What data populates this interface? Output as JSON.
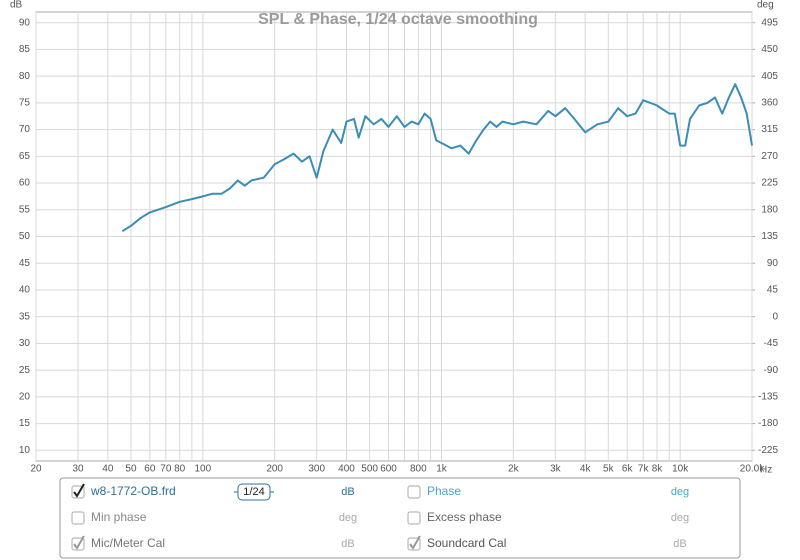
{
  "chart_data": {
    "type": "line",
    "title": "SPL & Phase, 1/24 octave smoothing",
    "y_label": "dB",
    "y2_label": "deg",
    "x_label": "Hz",
    "x_scale": "log",
    "grid": true,
    "xlim": [
      20,
      20000
    ],
    "xticks": [
      20,
      30,
      40,
      50,
      60,
      70,
      80,
      100,
      200,
      300,
      400,
      500,
      600,
      800,
      {
        "value": 1000,
        "label": "1k"
      },
      {
        "value": 2000,
        "label": "2k"
      },
      {
        "value": 3000,
        "label": "3k"
      },
      {
        "value": 4000,
        "label": "4k"
      },
      {
        "value": 5000,
        "label": "5k"
      },
      {
        "value": 6000,
        "label": "6k"
      },
      {
        "value": 7000,
        "label": "7k"
      },
      {
        "value": 8000,
        "label": "8k"
      },
      {
        "value": 10000,
        "label": "10k"
      },
      {
        "value": 20000,
        "label": "20.0k"
      }
    ],
    "xgrid_minor": [
      90,
      700,
      900,
      9000
    ],
    "ylim": [
      8,
      92
    ],
    "yticks": [
      10,
      15,
      20,
      25,
      30,
      35,
      40,
      45,
      50,
      55,
      60,
      65,
      70,
      75,
      80,
      85,
      90
    ],
    "y2lim": [
      -243,
      513
    ],
    "y2ticks": [
      -225,
      -180,
      -135,
      -90,
      -45,
      0,
      45,
      90,
      135,
      180,
      225,
      270,
      315,
      360,
      405,
      450,
      495
    ],
    "x": [
      46,
      50,
      55,
      60,
      70,
      80,
      90,
      100,
      110,
      120,
      130,
      140,
      150,
      160,
      180,
      200,
      220,
      240,
      260,
      280,
      300,
      320,
      350,
      380,
      400,
      430,
      450,
      480,
      520,
      560,
      600,
      650,
      700,
      750,
      800,
      850,
      900,
      950,
      1000,
      1100,
      1200,
      1300,
      1400,
      1500,
      1600,
      1700,
      1800,
      2000,
      2200,
      2500,
      2800,
      3000,
      3300,
      3600,
      4000,
      4500,
      5000,
      5500,
      6000,
      6500,
      7000,
      8000,
      9000,
      9500,
      10000,
      10500,
      11000,
      12000,
      13000,
      14000,
      15000,
      16000,
      17000,
      18000,
      19000,
      20000
    ],
    "series": [
      {
        "name": "w8-1772-OB.frd",
        "color": "#3a8db5",
        "values": [
          51,
          52,
          53.5,
          54.5,
          55.5,
          56.5,
          57,
          57.5,
          58,
          58,
          59,
          60.5,
          59.5,
          60.5,
          61,
          63.5,
          64.5,
          65.5,
          64,
          65,
          61,
          66,
          70,
          67.5,
          71.5,
          72,
          68.5,
          72.5,
          71,
          72,
          70.5,
          72.5,
          70.5,
          71.5,
          71,
          73,
          72,
          68,
          67.5,
          66.5,
          67,
          65.5,
          68,
          70,
          71.5,
          70.5,
          71.5,
          71,
          71.5,
          71,
          73.5,
          72.5,
          74,
          72,
          69.5,
          71,
          71.5,
          74,
          72.5,
          73,
          75.5,
          74.5,
          73,
          73,
          67,
          67,
          72,
          74.5,
          75,
          76,
          73,
          76,
          78.5,
          76,
          73,
          67
        ]
      }
    ]
  },
  "panel": {
    "smoothing": "1/24",
    "rows": [
      [
        {
          "label": "w8-1772-OB.frd",
          "unit": "dB",
          "checked": true,
          "label_color": "#2c6f99",
          "unit_color": "#2c6f99"
        },
        {
          "label": "Phase",
          "unit": "deg",
          "checked": false,
          "label_color": "#4aa6cf",
          "unit_color": "#4aa6cf"
        }
      ],
      [
        {
          "label": "Min phase",
          "unit": "deg",
          "checked": false,
          "label_color": "#888888",
          "unit_color": "#aaaaaa"
        },
        {
          "label": "Excess phase",
          "unit": "deg",
          "checked": false,
          "label_color": "#666666",
          "unit_color": "#aaaaaa"
        }
      ],
      [
        {
          "label": "Mic/Meter Cal",
          "unit": "dB",
          "checked": true,
          "label_color": "#777777",
          "unit_color": "#aaaaaa"
        },
        {
          "label": "Soundcard Cal",
          "unit": "dB",
          "checked": true,
          "label_color": "#555555",
          "unit_color": "#aaaaaa"
        }
      ]
    ]
  }
}
